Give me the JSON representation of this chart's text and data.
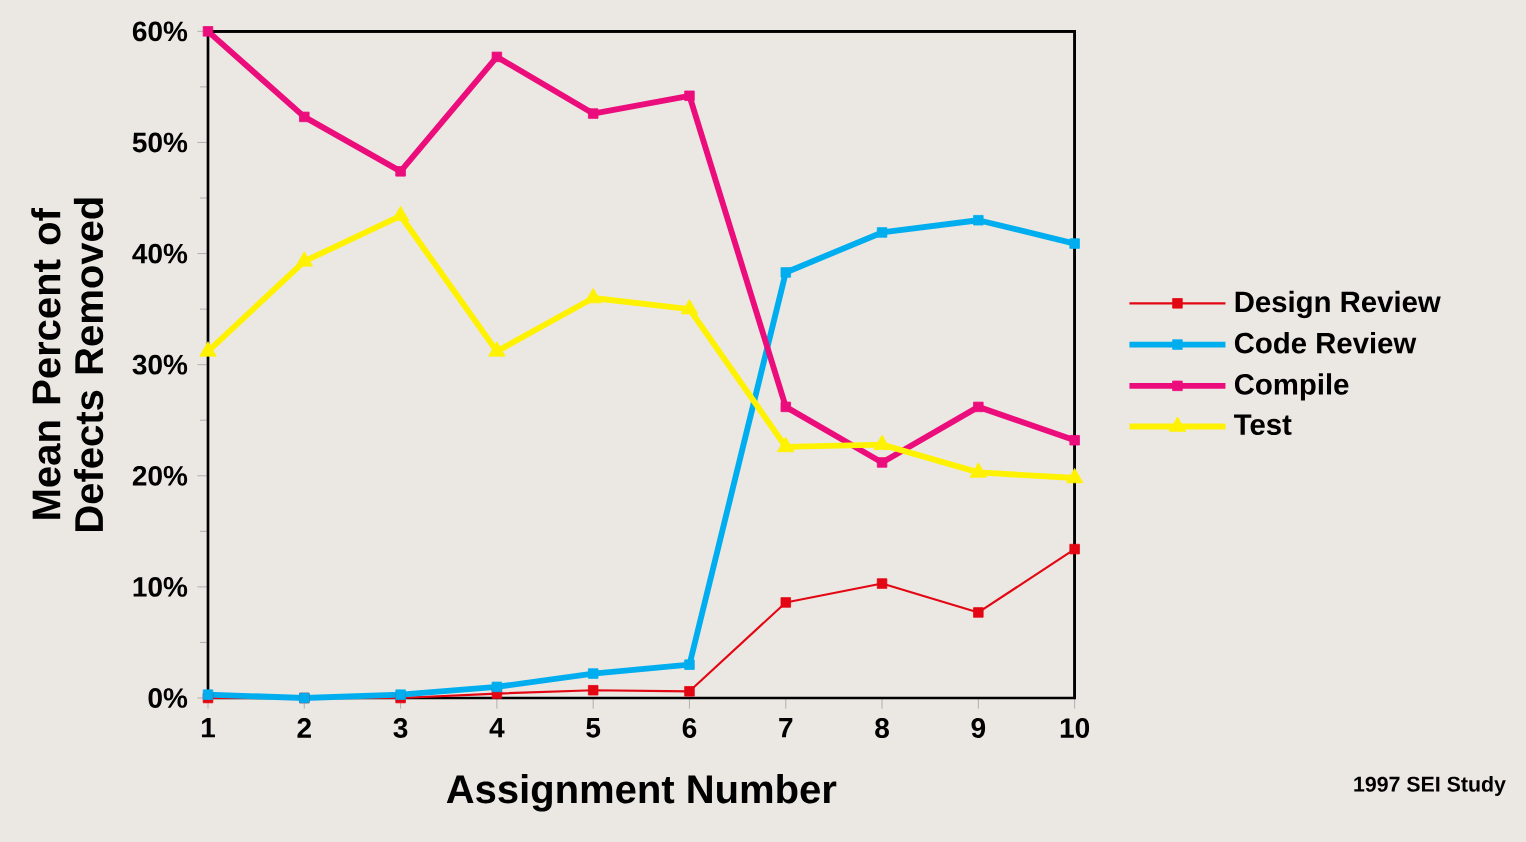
{
  "chart_data": {
    "type": "line",
    "xlabel": "Assignment Number",
    "ylabel": "Mean Percent of Defects Removed",
    "x": [
      1,
      2,
      3,
      4,
      5,
      6,
      7,
      8,
      9,
      10
    ],
    "xlim": [
      1,
      10
    ],
    "xticks": [
      1,
      2,
      3,
      4,
      5,
      6,
      7,
      8,
      9,
      10
    ],
    "ylim": [
      0,
      60
    ],
    "yticks": [
      {
        "value": 0,
        "label": "0%"
      },
      {
        "value": 10,
        "label": "10%"
      },
      {
        "value": 20,
        "label": "20%"
      },
      {
        "value": 30,
        "label": "30%"
      },
      {
        "value": 40,
        "label": "40%"
      },
      {
        "value": 50,
        "label": "50%"
      },
      {
        "value": 60,
        "label": "60%"
      }
    ],
    "legend": "right",
    "grid": false,
    "series": [
      {
        "name": "Design Review",
        "color": "#e30613",
        "marker": "square",
        "values": [
          0,
          0,
          0,
          0.4,
          0.7,
          0.6,
          8.6,
          10.3,
          7.7,
          13.4
        ]
      },
      {
        "name": "Code Review",
        "color": "#00aeef",
        "marker": "square",
        "values": [
          0.3,
          0,
          0.3,
          1.0,
          2.2,
          3.0,
          38.3,
          41.9,
          43.0,
          40.9
        ]
      },
      {
        "name": "Compile",
        "color": "#ec0d7c",
        "marker": "square",
        "values": [
          60,
          52.3,
          47.4,
          57.7,
          52.6,
          54.2,
          26.2,
          21.2,
          26.2,
          23.2
        ]
      },
      {
        "name": "Test",
        "color": "#fff200",
        "marker": "triangle",
        "values": [
          31.2,
          39.3,
          43.4,
          31.2,
          36.0,
          35.0,
          22.6,
          22.8,
          20.3,
          19.8
        ]
      }
    ],
    "annotations": [
      "1997 SEI Study"
    ]
  }
}
